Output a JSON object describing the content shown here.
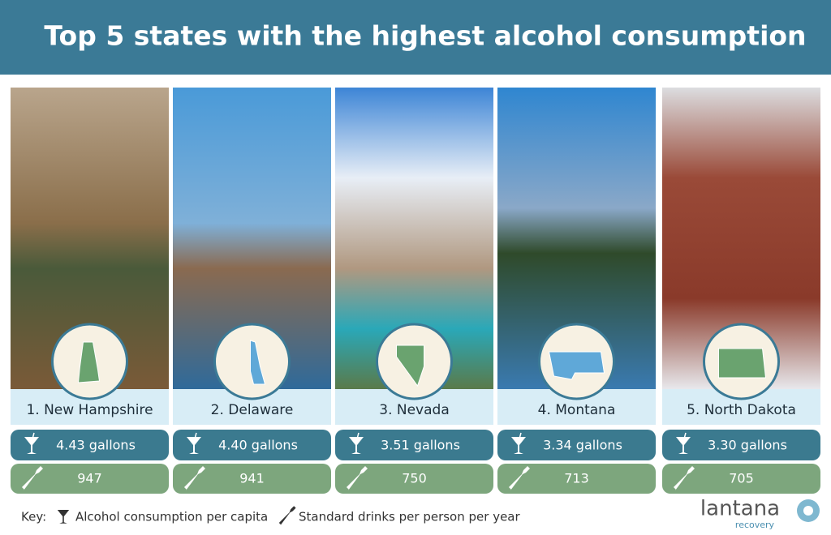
{
  "header": {
    "title": "Top 5 states with the highest alcohol consumption"
  },
  "states": [
    {
      "label": "1. New Hampshire",
      "gallons": "4.43 gallons",
      "drinks": "947"
    },
    {
      "label": "2. Delaware",
      "gallons": "4.40 gallons",
      "drinks": "941"
    },
    {
      "label": "3. Nevada",
      "gallons": "3.51 gallons",
      "drinks": "750"
    },
    {
      "label": "4. Montana",
      "gallons": "3.34 gallons",
      "drinks": "713"
    },
    {
      "label": "5. North Dakota",
      "gallons": "3.30 gallons",
      "drinks": "705"
    }
  ],
  "key": {
    "title": "Key:",
    "gallons": "Alcohol consumption per capita",
    "drinks": "Standard drinks per person per year"
  },
  "logo": {
    "name": "lantana",
    "sub": "recovery"
  }
}
